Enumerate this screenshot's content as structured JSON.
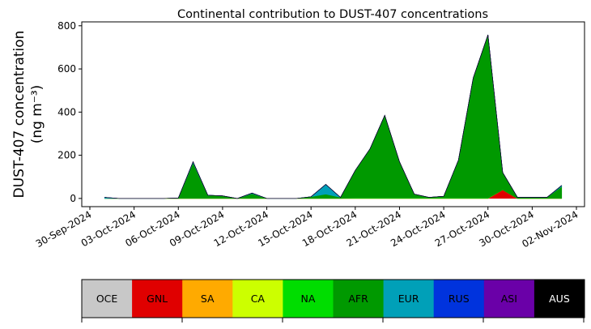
{
  "chart_data": {
    "type": "stacked-area",
    "title": "Continental contribution to DUST-407 concentrations",
    "y_label": [
      "DUST-407 concentration",
      "(ng m⁻³)"
    ],
    "x": [
      "2024-10-01",
      "2024-10-02",
      "2024-10-03",
      "2024-10-04",
      "2024-10-05",
      "2024-10-06",
      "2024-10-07",
      "2024-10-08",
      "2024-10-09",
      "2024-10-10",
      "2024-10-11",
      "2024-10-12",
      "2024-10-13",
      "2024-10-14",
      "2024-10-15",
      "2024-10-16",
      "2024-10-17",
      "2024-10-18",
      "2024-10-19",
      "2024-10-20",
      "2024-10-21",
      "2024-10-22",
      "2024-10-23",
      "2024-10-24",
      "2024-10-25",
      "2024-10-26",
      "2024-10-27",
      "2024-10-28",
      "2024-10-29",
      "2024-10-30",
      "2024-10-31",
      "2024-11-01"
    ],
    "series": [
      {
        "name": "OCE",
        "color": "#c8c8c8",
        "values": [
          0,
          0,
          0,
          0,
          0,
          0,
          0,
          0,
          0,
          0,
          0,
          0,
          0,
          0,
          0,
          0,
          0,
          0,
          0,
          0,
          0,
          0,
          0,
          0,
          0,
          0,
          0,
          0,
          0,
          0,
          0,
          0
        ]
      },
      {
        "name": "GNL",
        "color": "#e00000",
        "values": [
          0,
          0,
          0,
          0,
          0,
          0,
          0,
          0,
          0,
          0,
          0,
          0,
          0,
          0,
          0,
          0,
          0,
          0,
          0,
          0,
          0,
          0,
          0,
          0,
          0,
          0,
          0,
          40,
          0,
          0,
          0,
          0
        ]
      },
      {
        "name": "SA",
        "color": "#ffaa00",
        "values": [
          0,
          0,
          0,
          0,
          0,
          0,
          0,
          0,
          0,
          0,
          0,
          0,
          0,
          0,
          0,
          0,
          0,
          0,
          0,
          0,
          0,
          0,
          0,
          0,
          0,
          0,
          0,
          0,
          0,
          0,
          0,
          0
        ]
      },
      {
        "name": "CA",
        "color": "#ccff00",
        "values": [
          0,
          0,
          0,
          0,
          0,
          0,
          0,
          0,
          0,
          0,
          0,
          0,
          0,
          0,
          0,
          0,
          0,
          0,
          0,
          0,
          0,
          0,
          0,
          0,
          0,
          0,
          0,
          0,
          0,
          0,
          0,
          0
        ]
      },
      {
        "name": "NA",
        "color": "#00dd00",
        "values": [
          0,
          0,
          0,
          0,
          0,
          0,
          0,
          0,
          0,
          0,
          0,
          0,
          0,
          0,
          0,
          0,
          0,
          2,
          2,
          2,
          2,
          2,
          2,
          2,
          2,
          2,
          2,
          0,
          0,
          0,
          0,
          0
        ]
      },
      {
        "name": "AFR",
        "color": "#009900",
        "values": [
          0,
          0,
          0,
          0,
          0,
          2,
          165,
          15,
          12,
          0,
          22,
          0,
          0,
          0,
          8,
          20,
          5,
          128,
          228,
          383,
          168,
          18,
          3,
          8,
          176,
          556,
          756,
          80,
          5,
          5,
          5,
          55
        ]
      },
      {
        "name": "EUR",
        "color": "#00a0b8",
        "values": [
          5,
          0,
          0,
          0,
          0,
          0,
          5,
          0,
          0,
          0,
          3,
          0,
          0,
          0,
          0,
          45,
          0,
          0,
          0,
          0,
          0,
          0,
          0,
          0,
          0,
          0,
          0,
          0,
          0,
          0,
          0,
          5
        ]
      },
      {
        "name": "RUS",
        "color": "#0033dd",
        "values": [
          0,
          0,
          0,
          0,
          0,
          0,
          0,
          0,
          0,
          0,
          0,
          0,
          0,
          0,
          0,
          0,
          0,
          0,
          0,
          0,
          0,
          0,
          0,
          0,
          0,
          0,
          0,
          0,
          0,
          0,
          0,
          0
        ]
      },
      {
        "name": "ASI",
        "color": "#6a00a8",
        "values": [
          0,
          0,
          0,
          0,
          0,
          0,
          0,
          0,
          0,
          0,
          0,
          0,
          0,
          0,
          0,
          0,
          0,
          0,
          0,
          0,
          0,
          0,
          0,
          0,
          0,
          0,
          0,
          0,
          0,
          0,
          0,
          0
        ]
      },
      {
        "name": "AUS",
        "color": "#000000",
        "values": [
          0,
          0,
          0,
          0,
          0,
          0,
          0,
          0,
          0,
          0,
          0,
          0,
          0,
          0,
          0,
          0,
          0,
          0,
          0,
          0,
          0,
          0,
          0,
          0,
          0,
          0,
          0,
          0,
          0,
          0,
          0,
          0
        ]
      }
    ],
    "xlim": [
      "2024-09-30",
      "2024-11-02"
    ],
    "xticks": [
      {
        "value": "2024-09-30",
        "label": "30-Sep-2024"
      },
      {
        "value": "2024-10-03",
        "label": "03-Oct-2024"
      },
      {
        "value": "2024-10-06",
        "label": "06-Oct-2024"
      },
      {
        "value": "2024-10-09",
        "label": "09-Oct-2024"
      },
      {
        "value": "2024-10-12",
        "label": "12-Oct-2024"
      },
      {
        "value": "2024-10-15",
        "label": "15-Oct-2024"
      },
      {
        "value": "2024-10-18",
        "label": "18-Oct-2024"
      },
      {
        "value": "2024-10-21",
        "label": "21-Oct-2024"
      },
      {
        "value": "2024-10-24",
        "label": "24-Oct-2024"
      },
      {
        "value": "2024-10-27",
        "label": "27-Oct-2024"
      },
      {
        "value": "2024-10-30",
        "label": "30-Oct-2024"
      },
      {
        "value": "2024-11-02",
        "label": "02-Nov-2024"
      }
    ],
    "ylim": [
      -38,
      818
    ],
    "yticks": [
      0,
      200,
      400,
      600,
      800
    ]
  }
}
